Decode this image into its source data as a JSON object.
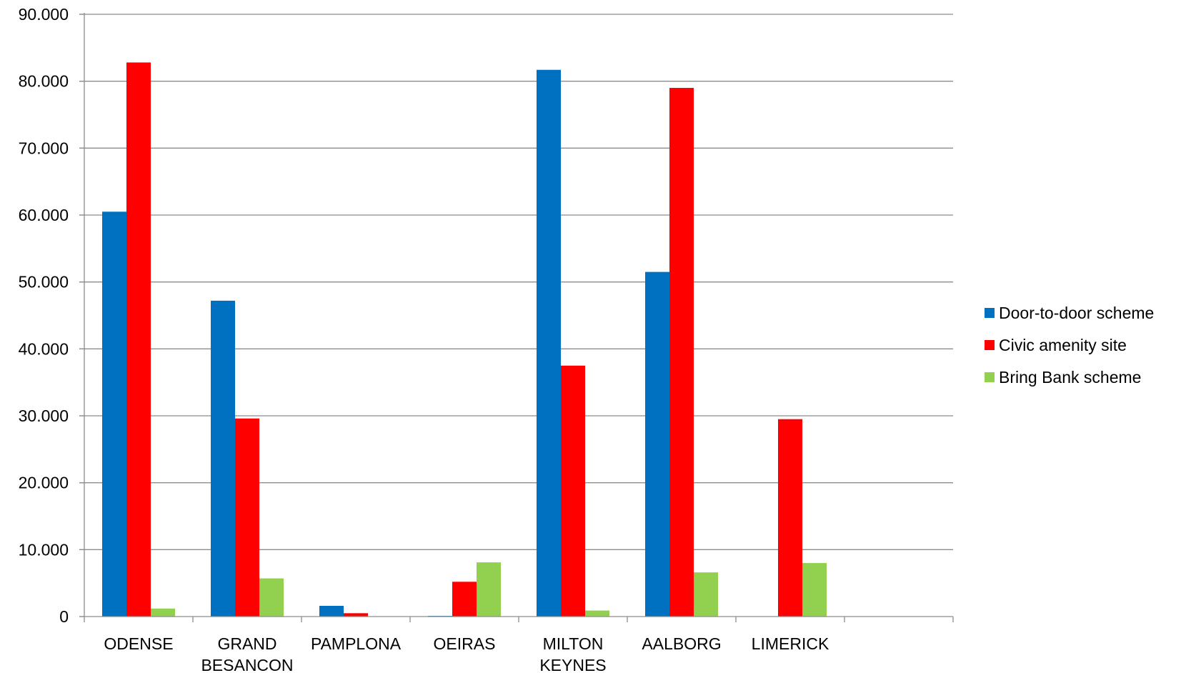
{
  "chart_data": {
    "type": "bar",
    "categories": [
      [
        "ODENSE"
      ],
      [
        "GRAND",
        "BESANCON"
      ],
      [
        "PAMPLONA"
      ],
      [
        "OEIRAS"
      ],
      [
        "MILTON",
        "KEYNES"
      ],
      [
        "AALBORG"
      ],
      [
        "LIMERICK"
      ],
      [
        ""
      ]
    ],
    "series": [
      {
        "name": "Door-to-door scheme",
        "color": "#0070C0",
        "values": [
          60500,
          47200,
          1600,
          100,
          81700,
          51500,
          0,
          0
        ]
      },
      {
        "name": "Civic amenity site",
        "color": "#FF0000",
        "values": [
          82800,
          29600,
          500,
          5200,
          37500,
          79000,
          29500,
          0
        ]
      },
      {
        "name": "Bring Bank scheme",
        "color": "#92D050",
        "values": [
          1200,
          5700,
          0,
          8100,
          900,
          6600,
          8000,
          0
        ]
      }
    ],
    "yticks": [
      {
        "value": 0,
        "label": "0"
      },
      {
        "value": 10000,
        "label": "10.000"
      },
      {
        "value": 20000,
        "label": "20.000"
      },
      {
        "value": 30000,
        "label": "30.000"
      },
      {
        "value": 40000,
        "label": "40.000"
      },
      {
        "value": 50000,
        "label": "50.000"
      },
      {
        "value": 60000,
        "label": "60.000"
      },
      {
        "value": 70000,
        "label": "70.000"
      },
      {
        "value": 80000,
        "label": "80.000"
      },
      {
        "value": 90000,
        "label": "90.000"
      }
    ],
    "ylim": [
      0,
      90000
    ],
    "grid": true,
    "legend_position": "right",
    "title": "",
    "xlabel": "",
    "ylabel": ""
  }
}
